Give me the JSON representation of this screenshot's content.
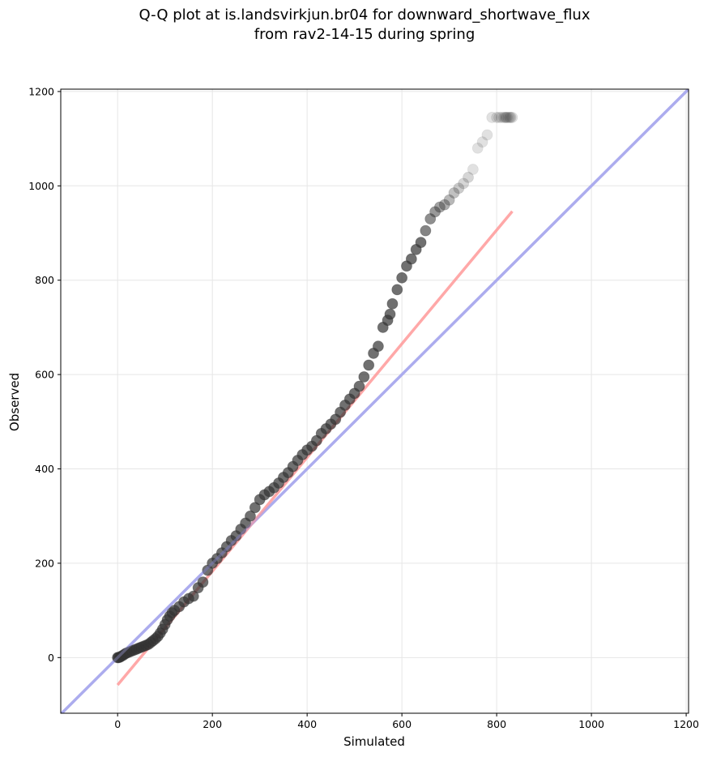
{
  "chart_data": {
    "type": "scatter",
    "title": "Q-Q plot at is.landsvirkjun.br04 for downward_shortwave_flux",
    "subtitle": "from rav2-14-15 during spring",
    "xlabel": "Simulated",
    "ylabel": "Observed",
    "xlim": [
      -120,
      1205
    ],
    "ylim": [
      -118,
      1205
    ],
    "xticks": [
      0,
      200,
      400,
      600,
      800,
      1000,
      1200
    ],
    "yticks": [
      0,
      200,
      400,
      600,
      800,
      1000,
      1200
    ],
    "grid": true,
    "quantiles": {
      "simulated": [
        0,
        2,
        5,
        8,
        12,
        16,
        20,
        25,
        30,
        35,
        40,
        45,
        50,
        55,
        60,
        65,
        70,
        75,
        80,
        85,
        90,
        95,
        100,
        105,
        110,
        115,
        120,
        130,
        140,
        150,
        160,
        170,
        180,
        190,
        200,
        210,
        220,
        230,
        240,
        250,
        260,
        270,
        280,
        290,
        300,
        310,
        320,
        330,
        340,
        350,
        360,
        370,
        380,
        390,
        400,
        410,
        420,
        430,
        440,
        450,
        460,
        470,
        480,
        490,
        500,
        510,
        520,
        530,
        540,
        550,
        560,
        570,
        575,
        580,
        590,
        600,
        610,
        620,
        630,
        640,
        650,
        660,
        670,
        680,
        690,
        700,
        710,
        720,
        730,
        740,
        750,
        760,
        770,
        780,
        790,
        800,
        805,
        810,
        815,
        818,
        820,
        822,
        825,
        828,
        830,
        833
      ],
      "observed": [
        0,
        0,
        1,
        3,
        5,
        8,
        10,
        12,
        14,
        16,
        18,
        20,
        22,
        24,
        26,
        28,
        32,
        36,
        40,
        45,
        52,
        60,
        70,
        80,
        88,
        95,
        100,
        108,
        118,
        125,
        130,
        148,
        160,
        185,
        200,
        210,
        222,
        235,
        248,
        258,
        272,
        285,
        300,
        318,
        335,
        345,
        352,
        360,
        370,
        382,
        392,
        405,
        418,
        430,
        440,
        448,
        460,
        475,
        485,
        495,
        505,
        520,
        535,
        548,
        560,
        575,
        595,
        620,
        645,
        660,
        700,
        715,
        728,
        750,
        780,
        805,
        830,
        845,
        865,
        880,
        905,
        930,
        945,
        955,
        960,
        970,
        985,
        995,
        1005,
        1018,
        1035,
        1080,
        1093,
        1108,
        1145,
        1145,
        1145,
        1145,
        1145,
        1145,
        1145,
        1145,
        1145,
        1145,
        1145,
        1145
      ],
      "alpha": [
        0.75,
        0.75,
        0.7,
        0.7,
        0.7,
        0.7,
        0.7,
        0.7,
        0.7,
        0.7,
        0.7,
        0.7,
        0.7,
        0.7,
        0.7,
        0.7,
        0.7,
        0.7,
        0.7,
        0.7,
        0.7,
        0.7,
        0.7,
        0.7,
        0.7,
        0.7,
        0.7,
        0.7,
        0.7,
        0.7,
        0.7,
        0.7,
        0.7,
        0.7,
        0.7,
        0.7,
        0.7,
        0.7,
        0.7,
        0.7,
        0.7,
        0.7,
        0.7,
        0.7,
        0.7,
        0.7,
        0.7,
        0.7,
        0.7,
        0.7,
        0.7,
        0.7,
        0.7,
        0.7,
        0.7,
        0.7,
        0.7,
        0.7,
        0.7,
        0.7,
        0.7,
        0.7,
        0.7,
        0.7,
        0.7,
        0.7,
        0.7,
        0.7,
        0.7,
        0.7,
        0.7,
        0.7,
        0.7,
        0.7,
        0.7,
        0.7,
        0.7,
        0.7,
        0.7,
        0.7,
        0.6,
        0.55,
        0.5,
        0.45,
        0.4,
        0.35,
        0.3,
        0.25,
        0.2,
        0.2,
        0.15,
        0.15,
        0.15,
        0.15,
        0.15,
        0.15,
        0.15,
        0.15,
        0.15,
        0.15,
        0.15,
        0.15,
        0.15,
        0.15,
        0.15,
        0.15
      ]
    },
    "reference_line": {
      "name": "1:1 line",
      "x": [
        -120,
        1205
      ],
      "y": [
        -120,
        1205
      ],
      "color": "#aaaaee"
    },
    "fit_line": {
      "name": "fit",
      "x": [
        0,
        833
      ],
      "y": [
        -58,
        946
      ],
      "color": "#ff9999"
    },
    "marker_color": "#333333"
  }
}
